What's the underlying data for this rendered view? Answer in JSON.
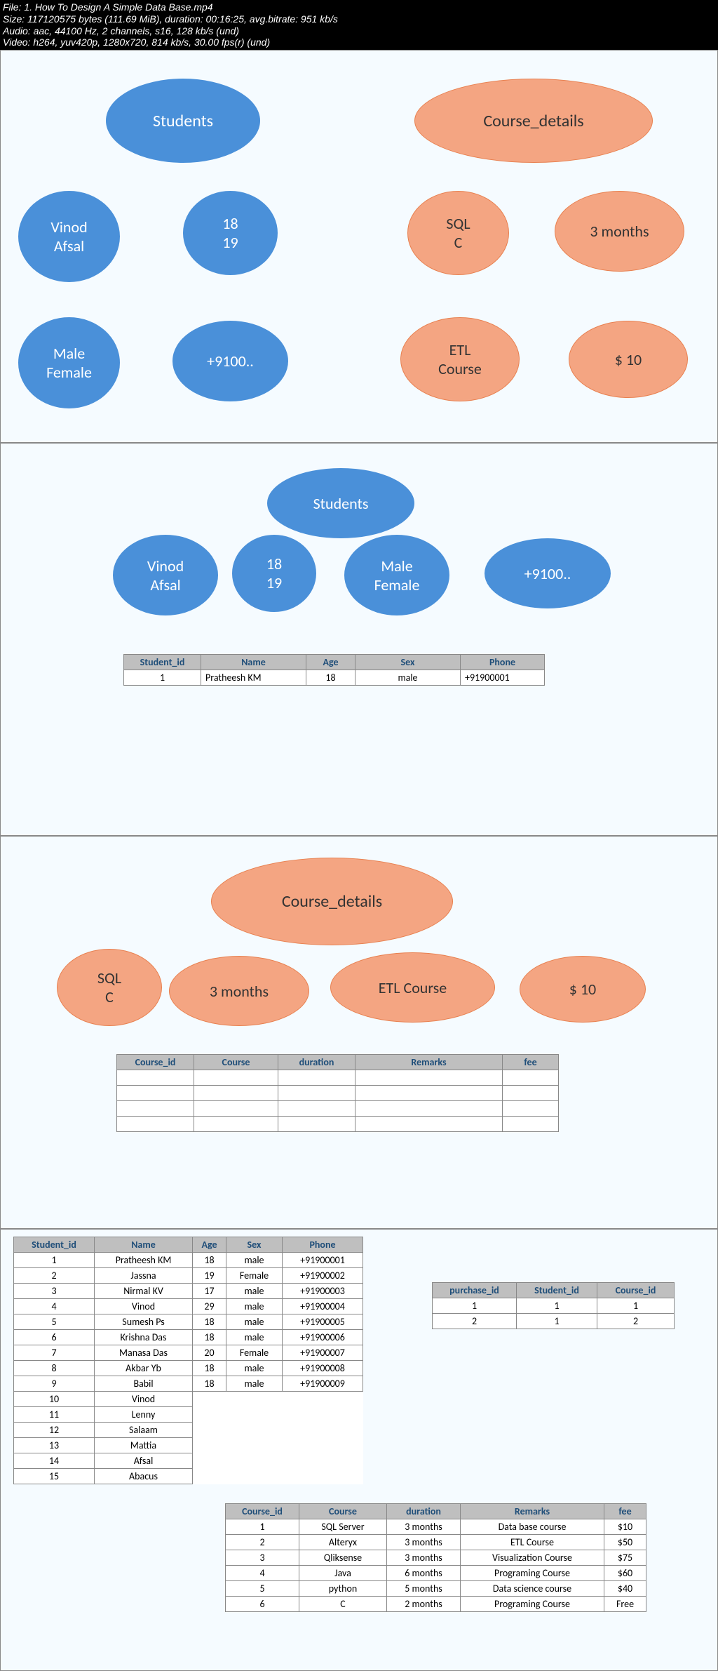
{
  "meta": {
    "line1": "File: 1. How To Design A Simple Data Base.mp4",
    "line2": "Size: 117120575 bytes (111.69 MiB), duration: 00:16:25, avg.bitrate: 951 kb/s",
    "line3": "Audio: aac, 44100 Hz, 2 channels, s16, 128 kb/s (und)",
    "line4": "Video: h264, yuv420p, 1280x720, 814 kb/s, 30.00 fps(r) (und)"
  },
  "colors": {
    "blue": "#4a90d9",
    "orange": "#f4a582",
    "panel_bg": "#f5fbff",
    "th_bg": "#bfbfbf",
    "th_color": "#1f4e79"
  },
  "p1": {
    "students": "Students",
    "names": "Vinod\nAfsal",
    "ages": "18\n19",
    "sex": "Male\nFemale",
    "phone": "+9100..",
    "course_details": "Course_details",
    "sql": "SQL\nC",
    "duration": "3 months",
    "etl": "ETL\nCourse",
    "fee": "$ 10"
  },
  "p2": {
    "students": "Students",
    "names": "Vinod\nAfsal",
    "ages": "18\n19",
    "sex": "Male\nFemale",
    "phone": "+9100..",
    "table": {
      "headers": [
        "Student_id",
        "Name",
        "Age",
        "Sex",
        "Phone"
      ],
      "rows": [
        [
          "1",
          "Pratheesh KM",
          "18",
          "male",
          "+91900001"
        ]
      ]
    }
  },
  "p3": {
    "course_details": "Course_details",
    "sql": "SQL\nC",
    "duration": "3 months",
    "etl": "ETL Course",
    "fee": "$ 10",
    "table": {
      "headers": [
        "Course_id",
        "Course",
        "duration",
        "Remarks",
        "fee"
      ],
      "rows": [
        [
          "",
          "",
          "",
          "",
          ""
        ],
        [
          "",
          "",
          "",
          "",
          ""
        ],
        [
          "",
          "",
          "",
          "",
          ""
        ],
        [
          "",
          "",
          "",
          "",
          ""
        ]
      ]
    }
  },
  "p4": {
    "students": {
      "headers": [
        "Student_id",
        "Name",
        "Age",
        "Sex",
        "Phone"
      ],
      "rows": [
        [
          "1",
          "Pratheesh KM",
          "18",
          "male",
          "+91900001"
        ],
        [
          "2",
          "Jassna",
          "19",
          "Female",
          "+91900002"
        ],
        [
          "3",
          "Nirmal KV",
          "17",
          "male",
          "+91900003"
        ],
        [
          "4",
          "Vinod",
          "29",
          "male",
          "+91900004"
        ],
        [
          "5",
          "Sumesh Ps",
          "18",
          "male",
          "+91900005"
        ],
        [
          "6",
          "Krishna Das",
          "18",
          "male",
          "+91900006"
        ],
        [
          "7",
          "Manasa Das",
          "20",
          "Female",
          "+91900007"
        ],
        [
          "8",
          "Akbar Yb",
          "18",
          "male",
          "+91900008"
        ],
        [
          "9",
          "Babil",
          "18",
          "male",
          "+91900009"
        ],
        [
          "10",
          "Vinod",
          "",
          "",
          ""
        ],
        [
          "11",
          "Lenny",
          "",
          "",
          ""
        ],
        [
          "12",
          "Salaam",
          "",
          "",
          ""
        ],
        [
          "13",
          "Mattia",
          "",
          "",
          ""
        ],
        [
          "14",
          "Afsal",
          "",
          "",
          ""
        ],
        [
          "15",
          "Abacus",
          "",
          "",
          ""
        ]
      ]
    },
    "purchases": {
      "headers": [
        "purchase_id",
        "Student_id",
        "Course_id"
      ],
      "rows": [
        [
          "1",
          "1",
          "1"
        ],
        [
          "2",
          "1",
          "2"
        ]
      ]
    },
    "courses": {
      "headers": [
        "Course_id",
        "Course",
        "duration",
        "Remarks",
        "fee"
      ],
      "rows": [
        [
          "1",
          "SQL Server",
          "3 months",
          "Data base course",
          "$10"
        ],
        [
          "2",
          "Alteryx",
          "3 months",
          "ETL Course",
          "$50"
        ],
        [
          "3",
          "Qliksense",
          "3 months",
          "Visualization Course",
          "$75"
        ],
        [
          "4",
          "Java",
          "6 months",
          "Programing Course",
          "$60"
        ],
        [
          "5",
          "python",
          "5 months",
          "Data science course",
          "$40"
        ],
        [
          "6",
          "C",
          "2 months",
          "Programing Course",
          "Free"
        ]
      ]
    }
  }
}
